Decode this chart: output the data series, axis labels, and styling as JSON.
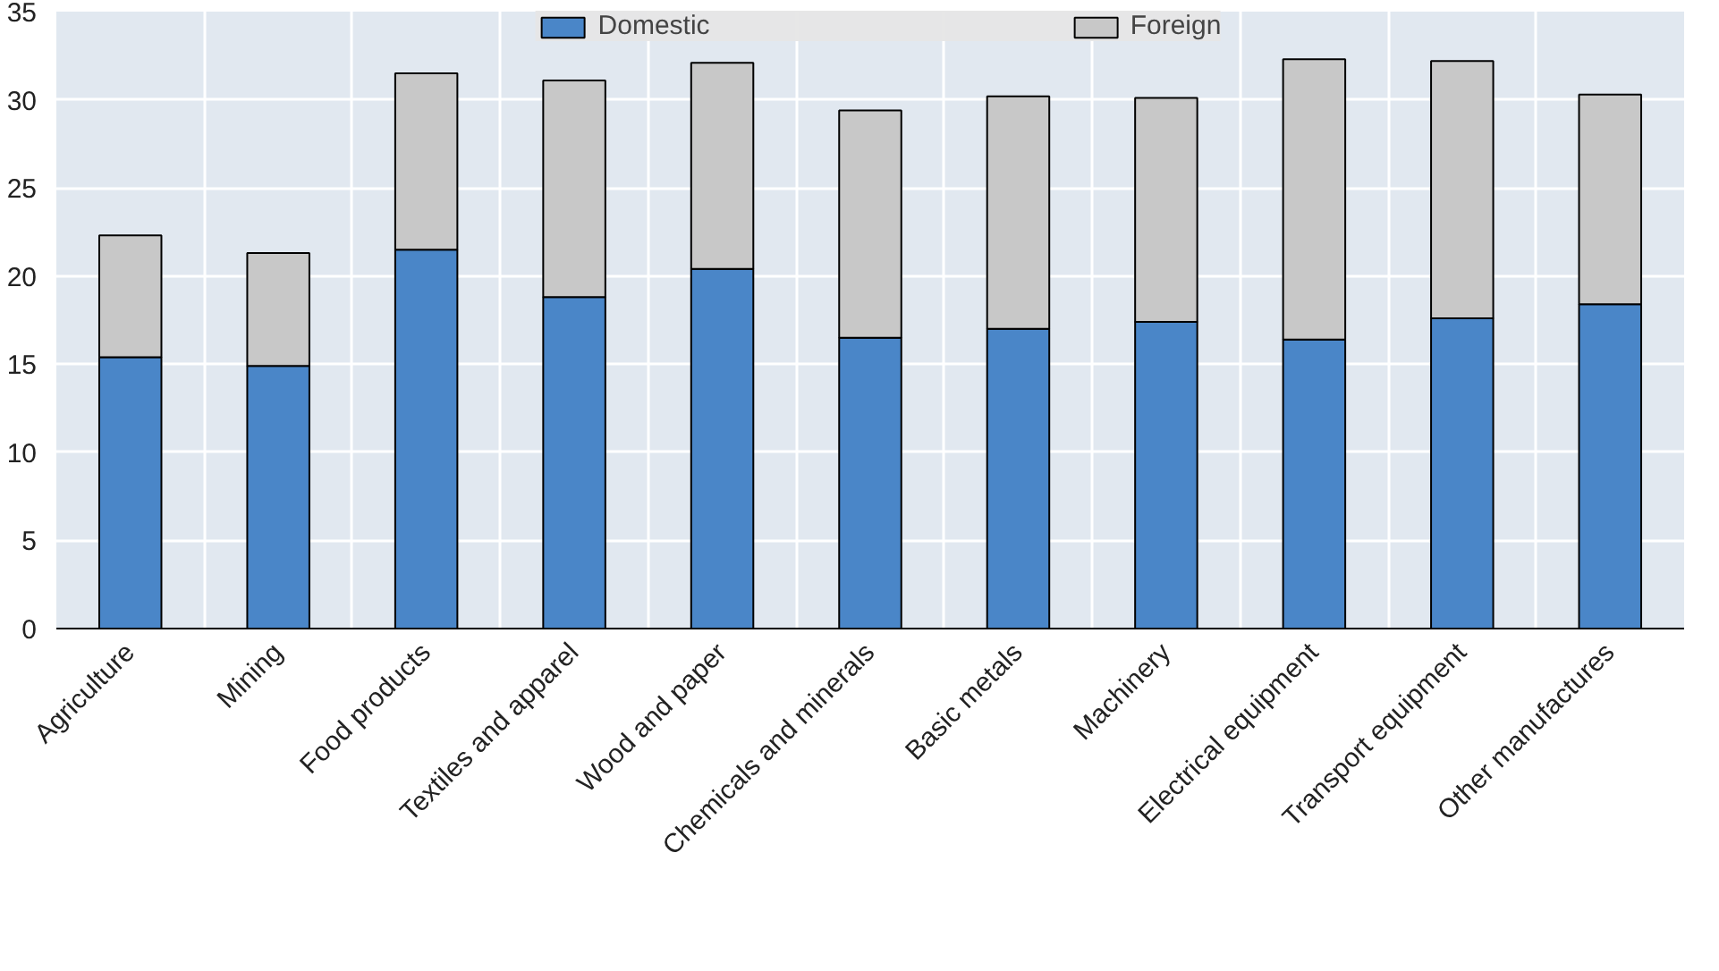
{
  "chart_data": {
    "type": "bar",
    "stacked": true,
    "categories": [
      "Agriculture",
      "Mining",
      "Food products",
      "Textiles and apparel",
      "Wood and paper",
      "Chemicals and minerals",
      "Basic metals",
      "Machinery",
      "Electrical equipment",
      "Transport equipment",
      "Other manufactures"
    ],
    "series": [
      {
        "name": "Domestic",
        "color": "#4a86c8",
        "values": [
          15.4,
          14.9,
          21.5,
          18.8,
          20.4,
          16.5,
          17.0,
          17.4,
          16.4,
          17.6,
          18.4
        ]
      },
      {
        "name": "Foreign",
        "color": "#c8c8c8",
        "values": [
          6.9,
          6.4,
          10.0,
          12.3,
          11.7,
          12.9,
          13.2,
          12.7,
          15.9,
          14.6,
          11.9
        ]
      }
    ],
    "ylim": [
      0,
      35
    ],
    "yticks": [
      0,
      5,
      10,
      15,
      20,
      25,
      30,
      35
    ],
    "grid": true,
    "legend": "top"
  }
}
